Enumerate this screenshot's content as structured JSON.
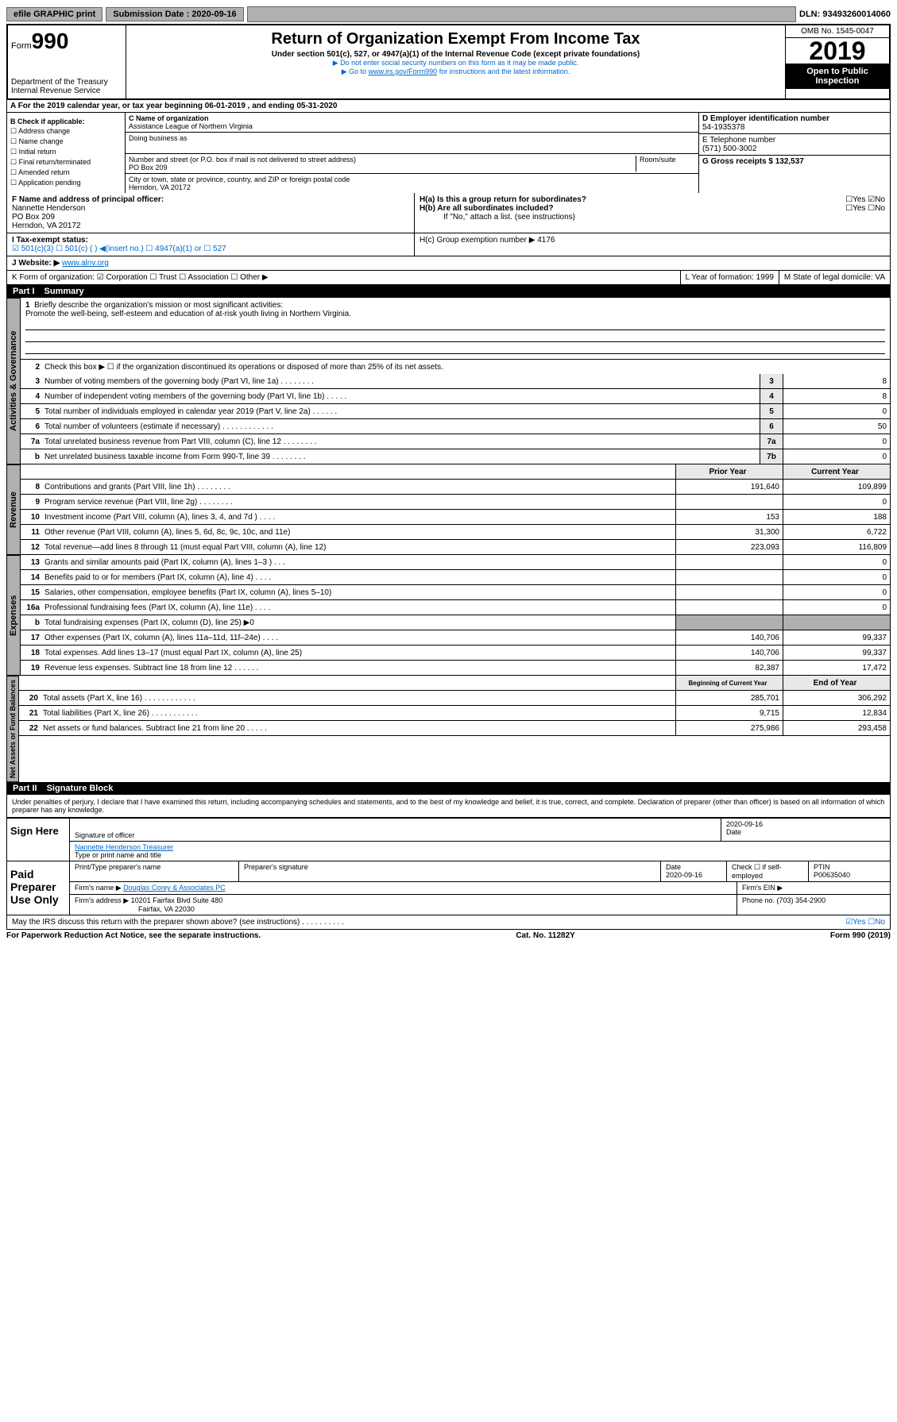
{
  "topbar": {
    "efile": "efile GRAPHIC print",
    "submission_label": "Submission Date : 2020-09-16",
    "dln": "DLN: 93493260014060"
  },
  "header": {
    "form_label": "Form",
    "form_number": "990",
    "dept": "Department of the Treasury\nInternal Revenue Service",
    "title": "Return of Organization Exempt From Income Tax",
    "subtitle": "Under section 501(c), 527, or 4947(a)(1) of the Internal Revenue Code (except private foundations)",
    "note1": "▶ Do not enter social security numbers on this form as it may be made public.",
    "note2_pre": "▶ Go to ",
    "note2_link": "www.irs.gov/Form990",
    "note2_post": " for instructions and the latest information.",
    "omb": "OMB No. 1545-0047",
    "year": "2019",
    "open": "Open to Public Inspection"
  },
  "section_a": "A For the 2019 calendar year, or tax year beginning 06-01-2019    , and ending 05-31-2020",
  "box_b": {
    "label": "B Check if applicable:",
    "items": [
      "☐ Address change",
      "☐ Name change",
      "☐ Initial return",
      "☐ Final return/terminated",
      "☐ Amended return",
      "☐ Application pending"
    ]
  },
  "box_c": {
    "name_label": "C Name of organization",
    "name": "Assistance League of Northern Virginia",
    "dba_label": "Doing business as",
    "addr_label": "Number and street (or P.O. box if mail is not delivered to street address)",
    "room_label": "Room/suite",
    "addr": "PO Box 209",
    "city_label": "City or town, state or province, country, and ZIP or foreign postal code",
    "city": "Herndon, VA  20172"
  },
  "box_d": {
    "ein_label": "D Employer identification number",
    "ein": "54-1935378",
    "tel_label": "E Telephone number",
    "tel": "(571) 500-3002",
    "gross_label": "G Gross receipts $ 132,537"
  },
  "box_f": {
    "label": "F  Name and address of principal officer:",
    "name": "Nannette Henderson",
    "addr1": "PO Box 209",
    "addr2": "Herndon, VA  20172"
  },
  "box_h": {
    "ha": "H(a)  Is this a group return for subordinates?",
    "ha_ans": "☐Yes ☑No",
    "hb": "H(b)  Are all subordinates included?",
    "hb_ans": "☐Yes ☐No",
    "hb_note": "If \"No,\" attach a list. (see instructions)",
    "hc": "H(c)  Group exemption number ▶   4176"
  },
  "row_i": {
    "label": "I    Tax-exempt status:",
    "opts": "☑ 501(c)(3)    ☐  501(c) (  ) ◀(insert no.)    ☐ 4947(a)(1) or  ☐ 527"
  },
  "row_j": {
    "label": "J   Website: ▶ ",
    "url": "www.alnv.org"
  },
  "row_k": {
    "label": "K Form of organization:  ☑ Corporation ☐ Trust ☐ Association ☐ Other ▶",
    "l": "L Year of formation: 1999",
    "m": "M State of legal domicile: VA"
  },
  "part1": {
    "title": "Part I",
    "subtitle": "Summary"
  },
  "summary": {
    "q1": "Briefly describe the organization's mission or most significant activities:",
    "mission": "Promote the well-being, self-esteem and education of at-risk youth living in Northern Virginia.",
    "q2": "Check this box ▶ ☐  if the organization discontinued its operations or disposed of more than 25% of its net assets.",
    "rows_gov": [
      {
        "n": "3",
        "d": "Number of voting members of the governing body (Part VI, line 1a)  .   .   .   .   .   .   .   .",
        "b": "3",
        "v": "8"
      },
      {
        "n": "4",
        "d": "Number of independent voting members of the governing body (Part VI, line 1b)  .   .   .   .   .",
        "b": "4",
        "v": "8"
      },
      {
        "n": "5",
        "d": "Total number of individuals employed in calendar year 2019 (Part V, line 2a)  .   .   .   .   .   .",
        "b": "5",
        "v": "0"
      },
      {
        "n": "6",
        "d": "Total number of volunteers (estimate if necessary)  .   .   .   .   .   .   .   .   .   .   .   .",
        "b": "6",
        "v": "50"
      },
      {
        "n": "7a",
        "d": "Total unrelated business revenue from Part VIII, column (C), line 12  .   .   .   .   .   .   .   .",
        "b": "7a",
        "v": "0"
      },
      {
        "n": "  b",
        "d": "Net unrelated business taxable income from Form 990-T, line 39   .   .   .   .   .   .   .   .",
        "b": "7b",
        "v": "0"
      }
    ],
    "col_prior": "Prior Year",
    "col_current": "Current Year",
    "rows_rev": [
      {
        "n": "8",
        "d": "Contributions and grants (Part VIII, line 1h)  .   .   .   .   .   .   .   .",
        "p": "191,640",
        "c": "109,899"
      },
      {
        "n": "9",
        "d": "Program service revenue (Part VIII, line 2g)   .   .   .   .   .   .   .   .",
        "p": "",
        "c": "0"
      },
      {
        "n": "10",
        "d": "Investment income (Part VIII, column (A), lines 3, 4, and 7d )   .   .   .   .",
        "p": "153",
        "c": "188"
      },
      {
        "n": "11",
        "d": "Other revenue (Part VIII, column (A), lines 5, 6d, 8c, 9c, 10c, and 11e)",
        "p": "31,300",
        "c": "6,722"
      },
      {
        "n": "12",
        "d": "Total revenue—add lines 8 through 11 (must equal Part VIII, column (A), line 12)",
        "p": "223,093",
        "c": "116,809"
      }
    ],
    "rows_exp": [
      {
        "n": "13",
        "d": "Grants and similar amounts paid (Part IX, column (A), lines 1–3 )  .   .   .",
        "p": "",
        "c": "0"
      },
      {
        "n": "14",
        "d": "Benefits paid to or for members (Part IX, column (A), line 4)  .   .   .   .",
        "p": "",
        "c": "0"
      },
      {
        "n": "15",
        "d": "Salaries, other compensation, employee benefits (Part IX, column (A), lines 5–10)",
        "p": "",
        "c": "0"
      },
      {
        "n": "16a",
        "d": "Professional fundraising fees (Part IX, column (A), line 11e)   .   .   .   .",
        "p": "",
        "c": "0"
      },
      {
        "n": "  b",
        "d": "Total fundraising expenses (Part IX, column (D), line 25) ▶0",
        "p": "GRAY",
        "c": "GRAY"
      },
      {
        "n": "17",
        "d": "Other expenses (Part IX, column (A), lines 11a–11d, 11f–24e)  .   .   .   .",
        "p": "140,706",
        "c": "99,337"
      },
      {
        "n": "18",
        "d": "Total expenses. Add lines 13–17 (must equal Part IX, column (A), line 25)",
        "p": "140,706",
        "c": "99,337"
      },
      {
        "n": "19",
        "d": "Revenue less expenses. Subtract line 18 from line 12  .   .   .   .   .   .",
        "p": "82,387",
        "c": "17,472"
      }
    ],
    "col_begin": "Beginning of Current Year",
    "col_end": "End of Year",
    "rows_net": [
      {
        "n": "20",
        "d": "Total assets (Part X, line 16)  .   .   .   .   .   .   .   .   .   .   .   .",
        "p": "285,701",
        "c": "306,292"
      },
      {
        "n": "21",
        "d": "Total liabilities (Part X, line 26)   .   .   .   .   .   .   .   .   .   .   .",
        "p": "9,715",
        "c": "12,834"
      },
      {
        "n": "22",
        "d": "Net assets or fund balances. Subtract line 21 from line 20  .   .   .   .   .",
        "p": "275,986",
        "c": "293,458"
      }
    ]
  },
  "labels": {
    "gov": "Activities & Governance",
    "rev": "Revenue",
    "exp": "Expenses",
    "net": "Net Assets or Fund Balances"
  },
  "part2": {
    "title": "Part II",
    "subtitle": "Signature Block",
    "decl": "Under penalties of perjury, I declare that I have examined this return, including accompanying schedules and statements, and to the best of my knowledge and belief, it is true, correct, and complete. Declaration of preparer (other than officer) is based on all information of which preparer has any knowledge."
  },
  "sign": {
    "label": "Sign Here",
    "sig_label": "Signature of officer",
    "date": "2020-09-16",
    "date_label": "Date",
    "name": "Nannette Henderson Treasurer",
    "name_label": "Type or print name and title"
  },
  "paid": {
    "label": "Paid Preparer Use Only",
    "h1": "Print/Type preparer's name",
    "h2": "Preparer's signature",
    "h3_label": "Date",
    "h3": "2020-09-16",
    "h4": "Check ☐ if self-employed",
    "h5_label": "PTIN",
    "h5": "P00635040",
    "firm_label": "Firm's name    ▶",
    "firm": "Douglas Corey & Associates PC",
    "ein_label": "Firm's EIN ▶",
    "addr_label": "Firm's address ▶",
    "addr": "10201 Fairfax Blvd Suite 480",
    "addr2": "Fairfax, VA  22030",
    "phone_label": "Phone no. (703) 354-2900"
  },
  "footer": {
    "discuss": "May the IRS discuss this return with the preparer shown above? (see instructions)   .   .   .   .   .   .   .   .   .   .",
    "discuss_ans": "☑Yes ☐No",
    "paperwork": "For Paperwork Reduction Act Notice, see the separate instructions.",
    "cat": "Cat. No. 11282Y",
    "form": "Form 990 (2019)"
  }
}
